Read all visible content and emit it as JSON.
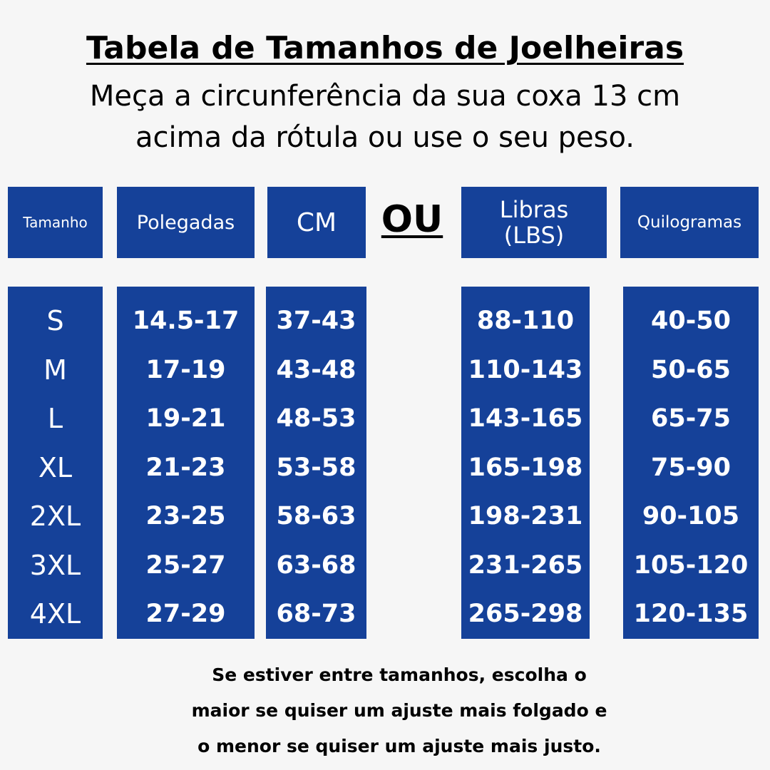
{
  "title": "Tabela de Tamanhos de Joelheiras",
  "subtitle": {
    "line1": "Meça a circunferência da sua coxa 13 cm",
    "line2": "acima da rótula ou use o seu peso."
  },
  "headers": {
    "size": "Tamanho",
    "inches": "Polegadas",
    "cm": "CM",
    "lbs_line1": "Libras",
    "lbs_line2": "(LBS)",
    "kg": "Quilogramas"
  },
  "separator": "OU",
  "table": {
    "sizes": [
      "S",
      "M",
      "L",
      "XL",
      "2XL",
      "3XL",
      "4XL"
    ],
    "inches": [
      "14.5-17",
      "17-19",
      "19-21",
      "21-23",
      "23-25",
      "25-27",
      "27-29"
    ],
    "cm": [
      "37-43",
      "43-48",
      "48-53",
      "53-58",
      "58-63",
      "63-68",
      "68-73"
    ],
    "lbs": [
      "88-110",
      "110-143",
      "143-165",
      "165-198",
      "198-231",
      "231-265",
      "265-298"
    ],
    "kg": [
      "40-50",
      "50-65",
      "65-75",
      "75-90",
      "90-105",
      "105-120",
      "120-135"
    ]
  },
  "footer": {
    "line1": "Se estiver entre tamanhos, escolha o",
    "line2": "maior se quiser um ajuste mais folgado e",
    "line3": "o menor se quiser um ajuste mais justo."
  },
  "colors": {
    "panel_blue": "#154199",
    "background": "#f6f6f6"
  }
}
